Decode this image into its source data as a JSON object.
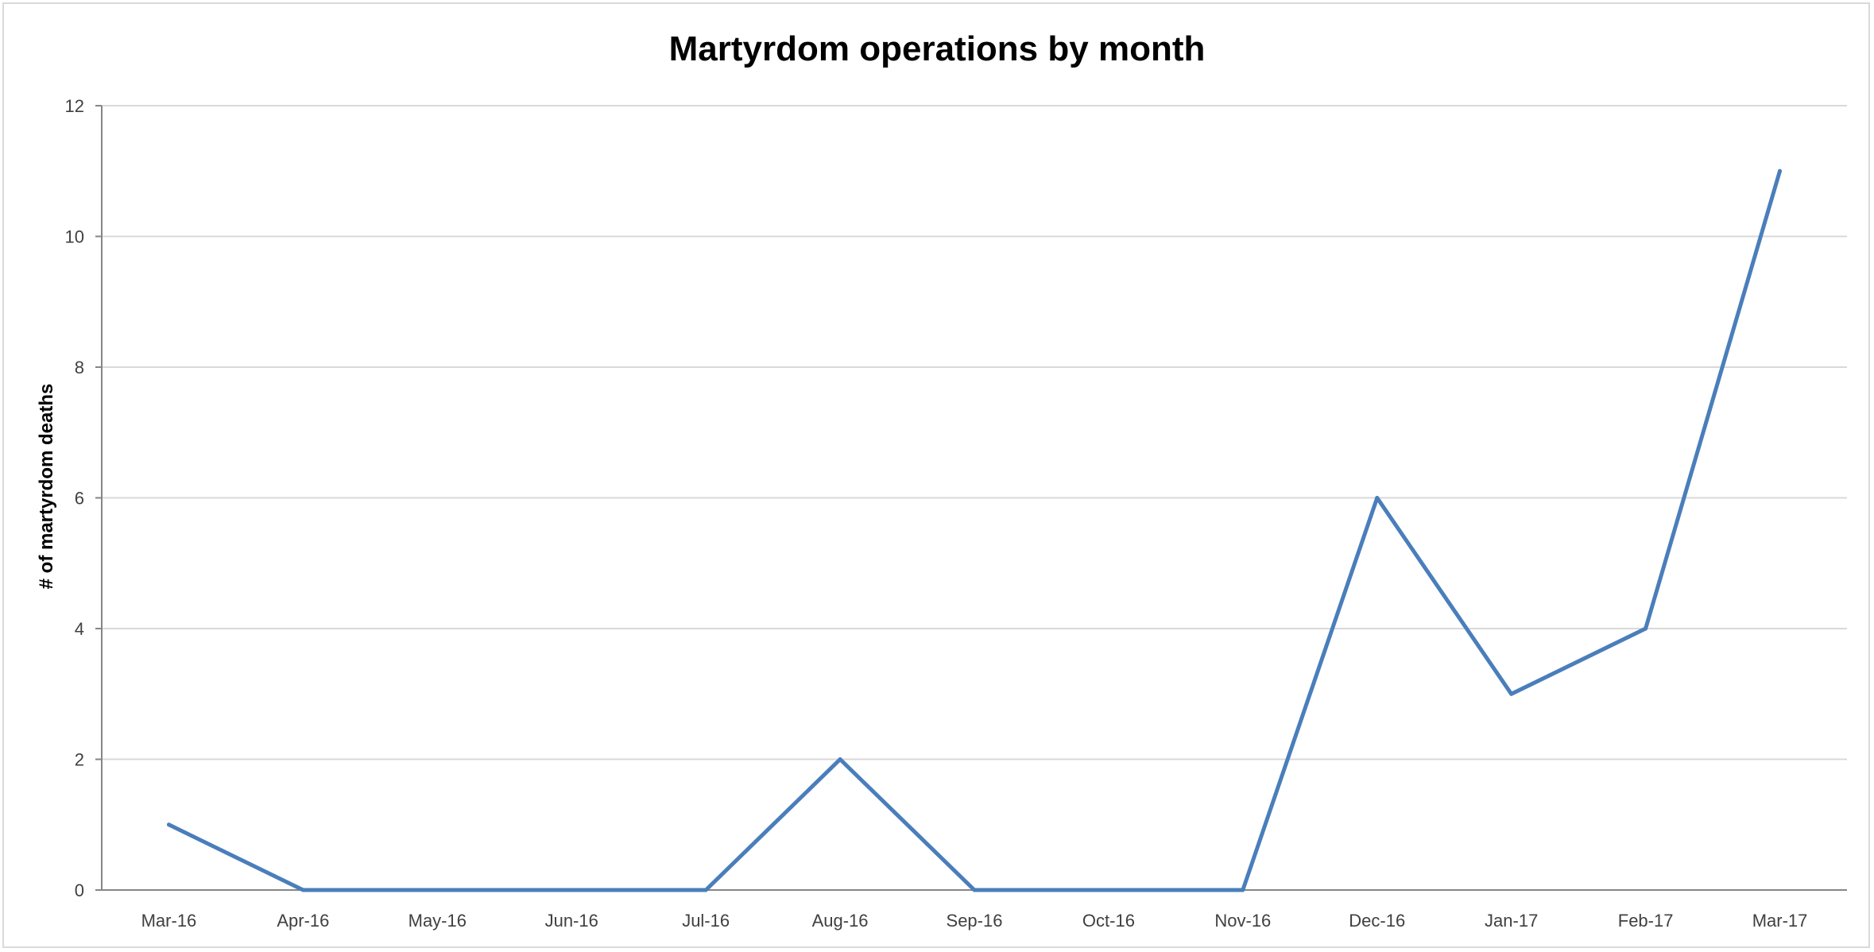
{
  "chart_data": {
    "type": "line",
    "title": "Martyrdom operations by month",
    "xlabel": "",
    "ylabel": "# of martyrdom deaths",
    "categories": [
      "Mar-16",
      "Apr-16",
      "May-16",
      "Jun-16",
      "Jul-16",
      "Aug-16",
      "Sep-16",
      "Oct-16",
      "Nov-16",
      "Dec-16",
      "Jan-17",
      "Feb-17",
      "Mar-17"
    ],
    "series": [
      {
        "values": [
          1,
          0,
          0,
          0,
          0,
          2,
          0,
          0,
          0,
          6,
          3,
          4,
          11
        ],
        "color": "#4a7ebb"
      }
    ],
    "ylim": [
      0,
      12
    ],
    "yticks": [
      "0",
      "2",
      "4",
      "6",
      "8",
      "10",
      "12"
    ],
    "grid": true,
    "legend": "none",
    "colors": {
      "gridline": "#d9d9d9",
      "axis": "#868686",
      "tick_text": "#404040"
    }
  }
}
